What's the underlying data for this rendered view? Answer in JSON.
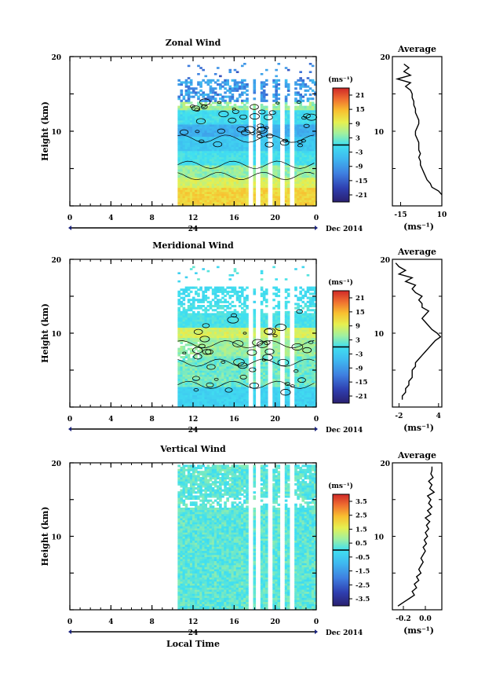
{
  "chart_data": [
    {
      "type": "heatmap",
      "title": "Zonal Wind",
      "ylabel": "Height (km)",
      "x_tick_labels": [
        "0",
        "4",
        "8",
        "12",
        "16",
        "20",
        "0"
      ],
      "y_tick_labels": [
        "10",
        "20"
      ],
      "ylim": [
        0,
        20
      ],
      "date_center": "24",
      "date_label": "Dec 2014",
      "colorbar": {
        "unit": "(ms⁻¹)",
        "ticks": [
          "21",
          "15",
          "9",
          "3",
          "-3",
          "-9",
          "-15",
          "-21"
        ],
        "range": [
          -24,
          24
        ]
      },
      "data_start_hour": 10.5,
      "gap_hours": [
        17.5,
        18.2,
        19.3,
        20.5,
        21.5
      ],
      "profile": {
        "title": "Average",
        "xlabel": "(ms⁻¹)",
        "x_tick_labels": [
          "-15",
          "10"
        ],
        "xlim": [
          -20,
          10
        ],
        "heights": [
          1.5,
          2,
          2.5,
          3,
          3.5,
          4,
          4.5,
          5,
          5.5,
          6,
          6.5,
          7,
          7.5,
          8,
          8.5,
          9,
          9.5,
          10,
          10.5,
          11,
          11.5,
          12,
          12.5,
          13,
          13.5,
          14,
          14.5,
          15,
          15.5,
          16,
          16.5,
          17,
          17.5,
          18,
          18.5,
          19
        ],
        "values": [
          10,
          8,
          4,
          3,
          1,
          0,
          -1,
          -2,
          -3,
          -3,
          -4,
          -3,
          -4,
          -4,
          -4,
          -5,
          -6,
          -6,
          -5,
          -4,
          -4,
          -5,
          -6,
          -6,
          -7,
          -7,
          -8,
          -8,
          -9,
          -12,
          -9,
          -17,
          -9,
          -13,
          -10,
          -13
        ]
      }
    },
    {
      "type": "heatmap",
      "title": "Meridional Wind",
      "ylabel": "Height (km)",
      "x_tick_labels": [
        "0",
        "4",
        "8",
        "12",
        "16",
        "20",
        "0"
      ],
      "y_tick_labels": [
        "10",
        "20"
      ],
      "ylim": [
        0,
        20
      ],
      "date_center": "24",
      "date_label": "Dec 2014",
      "colorbar": {
        "unit": "(ms⁻¹)",
        "ticks": [
          "21",
          "15",
          "9",
          "3",
          "-3",
          "-9",
          "-15",
          "-21"
        ],
        "range": [
          -24,
          24
        ]
      },
      "data_start_hour": 10.5,
      "gap_hours": [
        17.5,
        18.2,
        19.3,
        20.5,
        21.5
      ],
      "profile": {
        "title": "Average",
        "xlabel": "(ms⁻¹)",
        "x_tick_labels": [
          "-2",
          "4"
        ],
        "xlim": [
          -3,
          4.5
        ],
        "heights": [
          1,
          1.5,
          2,
          2.5,
          3,
          3.5,
          4,
          4.5,
          5,
          5.5,
          6,
          6.5,
          7,
          7.5,
          8,
          8.5,
          9,
          9.5,
          10,
          10.5,
          11,
          11.5,
          12,
          12.5,
          13,
          13.5,
          14,
          14.5,
          15,
          15.5,
          16,
          16.5,
          17,
          17.5,
          18,
          18.5,
          19,
          19.5
        ],
        "values": [
          -1.5,
          -1.5,
          -1.0,
          -1.0,
          -0.5,
          -0.5,
          0,
          0,
          0,
          0.5,
          0.5,
          1,
          1.5,
          2,
          2.5,
          3,
          3.5,
          4.3,
          3.8,
          3,
          2.5,
          2,
          1.5,
          2,
          2.5,
          1.5,
          1.5,
          1,
          1.5,
          0.5,
          0,
          0.5,
          -1,
          0,
          -2,
          -1,
          -2,
          -2.5
        ]
      }
    },
    {
      "type": "heatmap",
      "title": "Vertical Wind",
      "ylabel": "Height (km)",
      "xlabel": "Local Time",
      "x_tick_labels": [
        "0",
        "4",
        "8",
        "12",
        "16",
        "20",
        "0"
      ],
      "y_tick_labels": [
        "10",
        "20"
      ],
      "ylim": [
        0,
        20
      ],
      "date_center": "24",
      "date_label": "Dec 2014",
      "colorbar": {
        "unit": "(ms⁻¹)",
        "ticks": [
          "3.5",
          "2.5",
          "1.5",
          "0.5",
          "-0.5",
          "-1.5",
          "-2.5",
          "-3.5"
        ],
        "range": [
          -4,
          4
        ]
      },
      "data_start_hour": 10.5,
      "gap_hours": [
        17.5,
        18.2,
        19.3,
        20.5,
        21.5
      ],
      "profile": {
        "title": "Average",
        "xlabel": "(ms⁻¹)",
        "x_tick_labels": [
          "-0.2",
          "0.0"
        ],
        "xlim": [
          -0.3,
          0.15
        ],
        "heights": [
          0.5,
          1,
          1.5,
          2,
          2.5,
          3,
          3.5,
          4,
          4.5,
          5,
          5.5,
          6,
          6.5,
          7,
          7.5,
          8,
          8.5,
          9,
          9.5,
          10,
          10.5,
          11,
          11.5,
          12,
          12.5,
          13,
          13.5,
          14,
          14.5,
          15,
          15.5,
          16,
          16.5,
          17,
          17.5,
          18,
          18.5,
          19,
          19.5
        ],
        "values": [
          -0.25,
          -0.2,
          -0.15,
          -0.1,
          -0.12,
          -0.08,
          -0.1,
          -0.06,
          -0.08,
          -0.04,
          -0.06,
          -0.04,
          -0.02,
          -0.04,
          -0.02,
          0.0,
          -0.02,
          0.01,
          -0.01,
          0.02,
          0.0,
          0.03,
          0.01,
          0.04,
          0.0,
          0.05,
          0.02,
          0.06,
          0.03,
          0.05,
          0.02,
          0.08,
          0.04,
          0.06,
          0.03,
          0.07,
          0.05,
          0.06,
          0.06
        ]
      }
    }
  ]
}
